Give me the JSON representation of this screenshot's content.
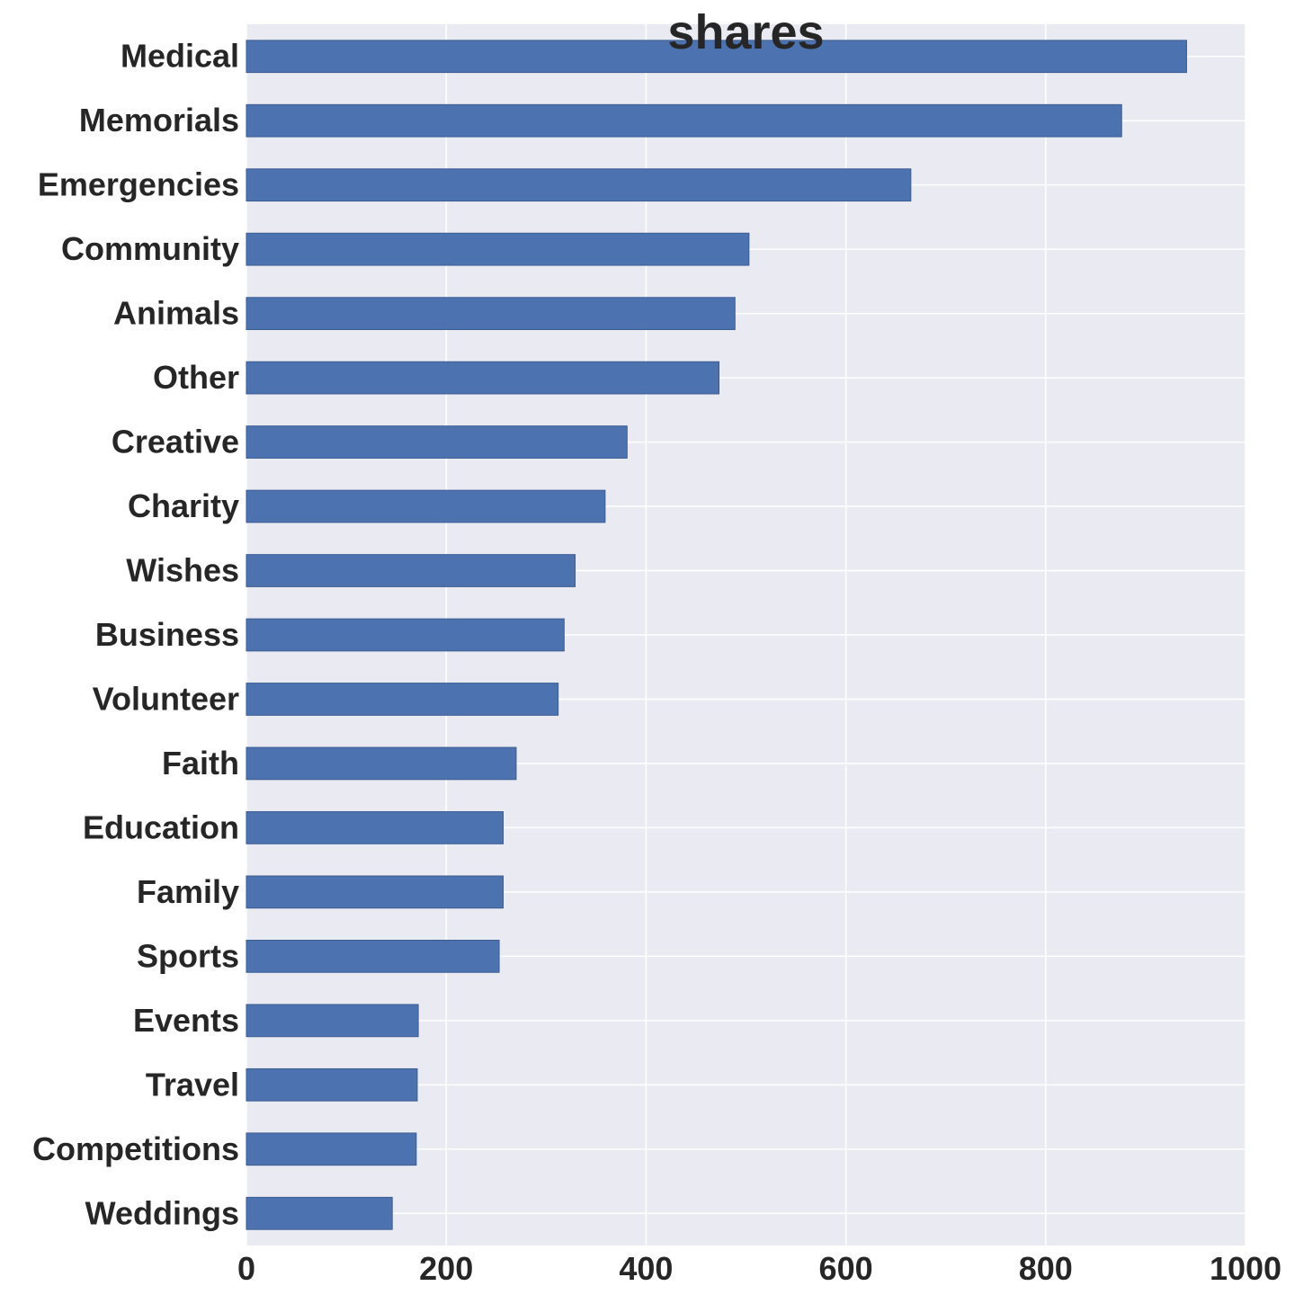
{
  "chart_data": {
    "type": "bar",
    "orientation": "horizontal",
    "title": "shares",
    "xlabel": "",
    "ylabel": "",
    "categories": [
      "Medical",
      "Memorials",
      "Emergencies",
      "Community",
      "Animals",
      "Other",
      "Creative",
      "Charity",
      "Wishes",
      "Business",
      "Volunteer",
      "Faith",
      "Education",
      "Family",
      "Sports",
      "Events",
      "Travel",
      "Competitions",
      "Weddings"
    ],
    "values": [
      941,
      876,
      665,
      503,
      489,
      473,
      381,
      359,
      329,
      318,
      312,
      270,
      257,
      257,
      253,
      172,
      171,
      170,
      146
    ],
    "xlim": [
      0,
      1000
    ],
    "xticks": [
      "0",
      "200",
      "400",
      "600",
      "800",
      "1000"
    ],
    "grid": true,
    "legend": "none",
    "colors": {
      "bar": "#4c72b0",
      "bar_edge": "#3d5d91",
      "plot_bg": "#eaeaf2",
      "grid": "#ffffff",
      "text": "#262626"
    }
  }
}
